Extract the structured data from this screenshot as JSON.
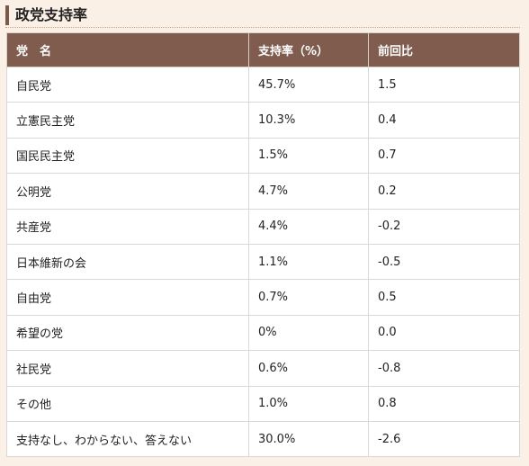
{
  "section": {
    "title": "政党支持率"
  },
  "table": {
    "headers": [
      "党　名",
      "支持率（%）",
      "前回比"
    ],
    "rows": [
      {
        "party": "自民党",
        "rate": "45.7%",
        "change": "1.5"
      },
      {
        "party": "立憲民主党",
        "rate": "10.3%",
        "change": "0.4"
      },
      {
        "party": "国民民主党",
        "rate": "1.5%",
        "change": "0.7"
      },
      {
        "party": "公明党",
        "rate": "4.7%",
        "change": "0.2"
      },
      {
        "party": "共産党",
        "rate": "4.4%",
        "change": "-0.2"
      },
      {
        "party": "日本維新の会",
        "rate": "1.1%",
        "change": "-0.5"
      },
      {
        "party": "自由党",
        "rate": "0.7%",
        "change": "0.5"
      },
      {
        "party": "希望の党",
        "rate": "0%",
        "change": "0.0"
      },
      {
        "party": "社民党",
        "rate": "0.6%",
        "change": "-0.8"
      },
      {
        "party": "その他",
        "rate": "1.0%",
        "change": "0.8"
      },
      {
        "party": "支持なし、わからない、答えない",
        "rate": "30.0%",
        "change": "-2.6"
      }
    ]
  },
  "colors": {
    "header_bg": "#7f5c4e",
    "page_bg": "#fbf0e6",
    "accent_bar": "#7a5a4c"
  }
}
